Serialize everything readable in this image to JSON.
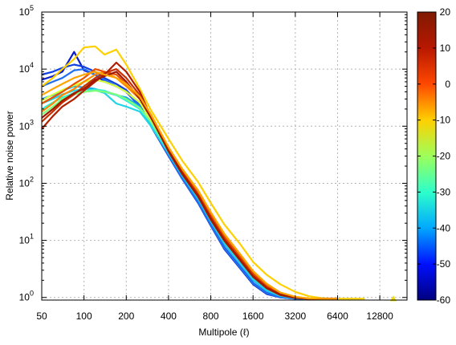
{
  "chart_data": {
    "type": "line",
    "title": "",
    "xlabel": "Multipole (ℓ)",
    "ylabel": "Relative noise power",
    "x_scale": "log2",
    "y_scale": "log10",
    "xlim": [
      50,
      20000
    ],
    "ylim": [
      0.9,
      100000
    ],
    "x_ticks": [
      50,
      100,
      200,
      400,
      800,
      1600,
      3200,
      6400,
      12800
    ],
    "x_tick_labels": [
      "50",
      "100",
      "200",
      "400",
      "800",
      "1600",
      "3200",
      "6400",
      "12800"
    ],
    "y_ticks": [
      1,
      10,
      100,
      1000,
      10000,
      100000
    ],
    "y_tick_bases": [
      "10",
      "10",
      "10",
      "10",
      "10",
      "10"
    ],
    "y_tick_exps": [
      "0",
      "1",
      "2",
      "3",
      "4",
      "5"
    ],
    "grid": true,
    "colorbar": {
      "range": [
        -60,
        20
      ],
      "ticks": [
        20,
        10,
        0,
        -10,
        -20,
        -30,
        -40,
        -50,
        -60
      ],
      "tick_labels": [
        "20",
        "10",
        "0",
        "-10",
        "-20",
        "-30",
        "-40",
        "-50",
        "-60"
      ],
      "colors": [
        "#00007f",
        "#0010ff",
        "#00a8ff",
        "#2dffca",
        "#9dff5a",
        "#ffd000",
        "#ff4800",
        "#b81800",
        "#7f1a00"
      ]
    },
    "series": [
      {
        "value": -58,
        "color": "#0a1ecc",
        "x": [
          50,
          60,
          70,
          85,
          100,
          120,
          140,
          170,
          200,
          250,
          300,
          400,
          500,
          650,
          800,
          1000,
          1300,
          1600,
          2000,
          2500,
          3200,
          4000,
          5000,
          6400
        ],
        "y": [
          6500,
          7500,
          9000,
          20000,
          9500,
          8000,
          6000,
          5000,
          4000,
          2200,
          1000,
          300,
          120,
          45,
          18,
          7,
          3.2,
          1.7,
          1.15,
          1.0,
          0.95,
          0.95,
          0.95,
          0.95
        ]
      },
      {
        "value": -52,
        "color": "#1240e0",
        "x": [
          50,
          60,
          70,
          85,
          100,
          120,
          140,
          170,
          200,
          250,
          300,
          400,
          500,
          650,
          800,
          1000,
          1300,
          1600,
          2000,
          2500,
          3200,
          4000,
          5000,
          6400
        ],
        "y": [
          8000,
          9000,
          10500,
          12000,
          11000,
          9000,
          7000,
          5500,
          4300,
          2300,
          1050,
          310,
          125,
          47,
          19,
          7.5,
          3.4,
          1.8,
          1.2,
          1.02,
          0.95,
          0.95,
          0.95,
          0.95
        ]
      },
      {
        "value": -45,
        "color": "#1f6ff0",
        "x": [
          50,
          60,
          70,
          85,
          100,
          120,
          140,
          170,
          200,
          250,
          300,
          400,
          500,
          650,
          800,
          1000,
          1300,
          1600,
          2000,
          2500,
          3200,
          4000,
          5000,
          6400
        ],
        "y": [
          5000,
          6000,
          7000,
          9500,
          10000,
          8000,
          6500,
          5000,
          4100,
          2250,
          1020,
          305,
          122,
          46,
          18.5,
          7.2,
          3.3,
          1.75,
          1.18,
          1.0,
          0.95,
          0.95,
          0.95,
          0.95
        ]
      },
      {
        "value": -35,
        "color": "#14a9f0",
        "x": [
          50,
          60,
          70,
          85,
          100,
          120,
          140,
          170,
          200,
          250,
          300,
          400,
          500,
          650,
          800,
          1000,
          1300,
          1600,
          2000,
          2500,
          3200,
          4000,
          5000,
          6400
        ],
        "y": [
          3000,
          3500,
          4200,
          5000,
          4800,
          4500,
          4000,
          3500,
          3200,
          2200,
          1100,
          330,
          135,
          52,
          21,
          8.5,
          3.8,
          2.0,
          1.3,
          1.05,
          0.96,
          0.95,
          0.95,
          0.95
        ]
      },
      {
        "value": -28,
        "color": "#22d4e8",
        "x": [
          50,
          60,
          70,
          85,
          100,
          120,
          140,
          170,
          200,
          250,
          300,
          400,
          500,
          650,
          800,
          1000,
          1300,
          1600,
          2000,
          2500,
          3200,
          4000,
          5000,
          6400
        ],
        "y": [
          2500,
          3000,
          3600,
          4200,
          4500,
          4300,
          3800,
          2500,
          2200,
          1800,
          1000,
          340,
          140,
          55,
          22,
          9,
          4.0,
          2.1,
          1.35,
          1.08,
          0.97,
          0.95,
          0.95,
          0.95
        ]
      },
      {
        "value": -22,
        "color": "#34f0d6",
        "x": [
          50,
          60,
          70,
          85,
          100,
          120,
          140,
          170,
          200,
          250,
          300,
          400,
          500,
          650,
          800,
          1000,
          1300,
          1600,
          2000,
          2500,
          3200,
          4000,
          5000,
          6400
        ],
        "y": [
          2000,
          2600,
          3200,
          3800,
          4000,
          4400,
          4200,
          3500,
          2800,
          2000,
          1150,
          360,
          150,
          60,
          24,
          9.8,
          4.4,
          2.3,
          1.45,
          1.12,
          0.98,
          0.95,
          0.95,
          0.95
        ]
      },
      {
        "value": -15,
        "color": "#7dff7a",
        "x": [
          50,
          60,
          70,
          85,
          100,
          120,
          140,
          170,
          200,
          250,
          300,
          400,
          500,
          650,
          800,
          1000,
          1300,
          1600,
          2000,
          2500,
          3200,
          4000,
          5000,
          6400
        ],
        "y": [
          1600,
          2200,
          3000,
          3600,
          4000,
          4200,
          4000,
          3600,
          3000,
          2100,
          1200,
          380,
          158,
          63,
          25,
          10.5,
          4.6,
          2.4,
          1.5,
          1.15,
          1.0,
          0.95,
          0.95,
          0.95
        ]
      },
      {
        "value": -8,
        "color": "#d8ff3a",
        "x": [
          50,
          60,
          70,
          85,
          100,
          120,
          140,
          170,
          200,
          250,
          300,
          400,
          500,
          650,
          800,
          1000,
          1300,
          1600,
          2000,
          2500,
          3200,
          4000,
          5000,
          6400
        ],
        "y": [
          2800,
          3600,
          4300,
          5200,
          6000,
          6500,
          6000,
          5000,
          4000,
          2600,
          1300,
          410,
          170,
          70,
          29,
          12,
          5.3,
          2.7,
          1.65,
          1.2,
          1.02,
          0.96,
          0.95,
          0.95
        ]
      },
      {
        "value": 2,
        "color": "#ffd000",
        "x": [
          50,
          60,
          70,
          85,
          100,
          120,
          140,
          170,
          200,
          250,
          300,
          400,
          500,
          650,
          800,
          1000,
          1300,
          1600,
          2000,
          2500,
          3200,
          4000,
          5000,
          6400,
          8000,
          10000
        ],
        "y": [
          5000,
          7000,
          10000,
          15000,
          24000,
          25000,
          18000,
          22000,
          12000,
          4500,
          1900,
          600,
          250,
          105,
          45,
          19,
          8.5,
          4.2,
          2.5,
          1.7,
          1.25,
          1.05,
          0.97,
          0.95,
          0.95,
          0.95
        ]
      },
      {
        "value": 10,
        "color": "#ff8800",
        "x": [
          50,
          60,
          70,
          85,
          100,
          120,
          140,
          170,
          200,
          250,
          300,
          400,
          500,
          650,
          800,
          1000,
          1300,
          1600,
          2000,
          2500,
          3200,
          4000,
          5000,
          6400
        ],
        "y": [
          1800,
          2500,
          3500,
          4500,
          6000,
          8000,
          9000,
          7000,
          5000,
          3000,
          1500,
          420,
          175,
          72,
          30,
          12.5,
          5.5,
          2.8,
          1.7,
          1.2,
          1.02,
          0.96,
          0.95,
          0.95
        ]
      },
      {
        "value": 14,
        "color": "#e85000",
        "x": [
          50,
          60,
          70,
          85,
          100,
          120,
          140,
          170,
          200,
          250,
          300,
          400,
          500,
          650,
          800,
          1000,
          1300,
          1600,
          2000,
          2500,
          3200,
          4000,
          5000,
          6400
        ],
        "y": [
          2500,
          3200,
          4000,
          5500,
          7000,
          10000,
          9000,
          8000,
          5500,
          3200,
          1600,
          400,
          165,
          68,
          28,
          11.5,
          5.1,
          2.6,
          1.6,
          1.17,
          1.0,
          0.96,
          0.95,
          0.95
        ]
      },
      {
        "value": 18,
        "color": "#c83000",
        "x": [
          50,
          60,
          70,
          85,
          100,
          120,
          140,
          170,
          200,
          250,
          300,
          400,
          500,
          650,
          800,
          1000,
          1300,
          1600,
          2000,
          2500,
          3200,
          4000,
          5000,
          6400
        ],
        "y": [
          1200,
          1800,
          2600,
          3600,
          5000,
          7000,
          8500,
          10000,
          7000,
          3500,
          1500,
          380,
          155,
          62,
          25,
          10.5,
          4.7,
          2.45,
          1.5,
          1.13,
          0.99,
          0.95,
          0.95,
          0.95
        ]
      },
      {
        "value": 20,
        "color": "#b02000",
        "x": [
          50,
          60,
          70,
          85,
          100,
          120,
          140,
          170,
          200,
          250,
          300,
          400,
          500,
          650,
          800,
          1000,
          1300,
          1600,
          2000,
          2500,
          3200,
          4000,
          5000,
          6400
        ],
        "y": [
          900,
          1500,
          2200,
          3000,
          4200,
          6000,
          8000,
          13000,
          9000,
          4000,
          1450,
          360,
          145,
          58,
          23,
          9.8,
          4.4,
          2.3,
          1.45,
          1.1,
          0.98,
          0.95,
          0.95,
          0.95
        ]
      },
      {
        "value": 16,
        "color": "#a01a00",
        "x": [
          50,
          60,
          70,
          85,
          100,
          120,
          140,
          170,
          200,
          250,
          300,
          400,
          500,
          650,
          800,
          1000,
          1300,
          1600,
          2000,
          2500,
          3200,
          4000,
          5000,
          6400
        ],
        "y": [
          1400,
          2000,
          2800,
          3800,
          4500,
          6500,
          7500,
          9000,
          6000,
          3000,
          1400,
          370,
          150,
          60,
          24,
          10.2,
          4.5,
          2.35,
          1.48,
          1.12,
          0.99,
          0.95,
          0.95,
          0.95
        ]
      },
      {
        "value": 6,
        "color": "#ffa500",
        "x": [
          50,
          60,
          70,
          85,
          100,
          120,
          140,
          170,
          200,
          250,
          300,
          400,
          500,
          650,
          800,
          1000,
          1300,
          1600,
          2000,
          2500,
          3200,
          4000,
          5000,
          6400
        ],
        "y": [
          3500,
          4500,
          5500,
          7000,
          8000,
          9000,
          8000,
          7000,
          5500,
          3300,
          1600,
          430,
          180,
          75,
          31,
          13,
          5.7,
          2.9,
          1.75,
          1.22,
          1.03,
          0.96,
          0.95,
          0.95
        ]
      }
    ]
  }
}
